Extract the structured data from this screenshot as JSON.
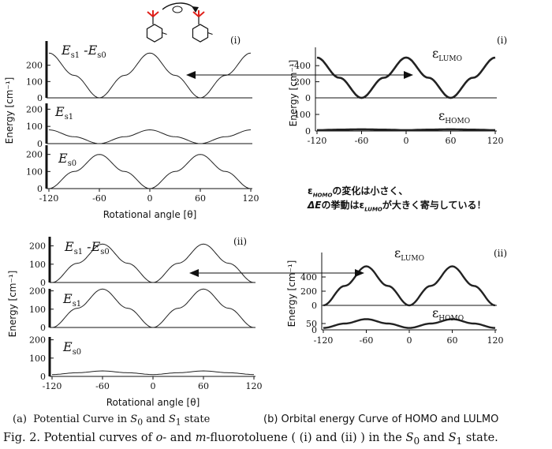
{
  "colors": {
    "line": "#222222",
    "axis": "#111111",
    "arrow": "#111111",
    "accent": "#e0201a"
  },
  "icons": [
    "rotation-arrow-icon",
    "o-fluorotoluene-structure-icon",
    "double-headed-arrow-icon"
  ],
  "panels": {
    "a_i": {
      "label": "(i)",
      "xlabel": "Rotational angle [θ]",
      "ylabel": "Energy [cm⁻¹]"
    },
    "a_ii": {
      "label": "(ii)",
      "xlabel": "Rotational angle [θ]",
      "ylabel": "Energy [cm⁻¹]"
    },
    "b_i": {
      "label": "(i)",
      "ylabel": "Energy [cm⁻¹]"
    },
    "b_ii": {
      "label": "(ii)",
      "ylabel": "Energy [cm⁻¹]"
    }
  },
  "note": {
    "line1": "εHOMOの変化は小さく、",
    "line2": "ΔEの挙動はεLUMOが大きく寄与している！"
  },
  "captions": {
    "a": "(a)  Potential Curve in S0 and S1 state",
    "b": "(b) Orbital energy Curve of HOMO and LULMO",
    "fig": "Fig. 2. Potential curves of o- and m-fluorotoluene ( (i) and (ii) ) in the S0 and S1 state."
  },
  "chart_data": [
    {
      "id": "a_i_top",
      "type": "line",
      "series": [
        {
          "name": "Es1 -Es0",
          "x": [
            -120,
            -90,
            -60,
            -30,
            0,
            30,
            60,
            90,
            120
          ],
          "y": [
            275,
            138,
            0,
            138,
            275,
            138,
            0,
            138,
            275
          ]
        }
      ],
      "xlim": [
        -120,
        120
      ],
      "ylim": [
        0,
        300
      ],
      "yticks": [
        0,
        100,
        200
      ]
    },
    {
      "id": "a_i_mid",
      "type": "line",
      "series": [
        {
          "name": "Es1",
          "x": [
            -120,
            -90,
            -60,
            -30,
            0,
            30,
            60,
            90,
            120
          ],
          "y": [
            80,
            40,
            0,
            40,
            80,
            40,
            0,
            40,
            80
          ]
        }
      ],
      "xlim": [
        -120,
        120
      ],
      "ylim": [
        0,
        220
      ],
      "yticks": [
        0,
        100,
        200
      ]
    },
    {
      "id": "a_i_bot",
      "type": "line",
      "series": [
        {
          "name": "Es0",
          "x": [
            -120,
            -90,
            -60,
            -30,
            0,
            30,
            60,
            90,
            120
          ],
          "y": [
            0,
            100,
            200,
            100,
            0,
            100,
            200,
            100,
            0
          ]
        }
      ],
      "xlim": [
        -120,
        120
      ],
      "ylim": [
        0,
        240
      ],
      "yticks": [
        0,
        100,
        200
      ],
      "xticks": [
        -120,
        -60,
        0,
        60,
        120
      ]
    },
    {
      "id": "a_ii_top",
      "type": "line",
      "series": [
        {
          "name": "Es1 -Es0",
          "x": [
            -120,
            -90,
            -60,
            -30,
            0,
            30,
            60,
            90,
            120
          ],
          "y": [
            0,
            105,
            210,
            105,
            0,
            105,
            210,
            105,
            0
          ]
        }
      ],
      "xlim": [
        -120,
        120
      ],
      "ylim": [
        0,
        250
      ],
      "yticks": [
        0,
        100,
        200
      ]
    },
    {
      "id": "a_ii_mid",
      "type": "line",
      "series": [
        {
          "name": "Es1",
          "x": [
            -120,
            -90,
            -60,
            -30,
            0,
            30,
            60,
            90,
            120
          ],
          "y": [
            0,
            105,
            210,
            105,
            0,
            105,
            210,
            105,
            0
          ]
        }
      ],
      "xlim": [
        -120,
        120
      ],
      "ylim": [
        0,
        250
      ],
      "yticks": [
        0,
        100,
        200
      ]
    },
    {
      "id": "a_ii_bot",
      "type": "line",
      "series": [
        {
          "name": "Es0",
          "x": [
            -120,
            -90,
            -60,
            -30,
            0,
            30,
            60,
            90,
            120
          ],
          "y": [
            10,
            20,
            30,
            20,
            10,
            20,
            30,
            20,
            10
          ]
        }
      ],
      "xlim": [
        -120,
        120
      ],
      "ylim": [
        0,
        250
      ],
      "yticks": [
        0,
        100,
        200
      ],
      "xticks": [
        -120,
        -60,
        0,
        60,
        120
      ]
    },
    {
      "id": "b_i",
      "type": "line",
      "series": [
        {
          "name": "εLUMO",
          "x": [
            -120,
            -90,
            -60,
            -30,
            0,
            30,
            60,
            90,
            120
          ],
          "y": [
            500,
            250,
            0,
            250,
            500,
            250,
            0,
            250,
            500
          ]
        },
        {
          "name": "εHOMO",
          "x": [
            -120,
            -90,
            -60,
            -30,
            0,
            30,
            60,
            90,
            120
          ],
          "y": [
            5,
            8,
            10,
            8,
            5,
            8,
            10,
            8,
            5
          ]
        }
      ],
      "xlim": [
        -120,
        120
      ],
      "yticks_upper": [
        0,
        200,
        400
      ],
      "yticks_lower": [
        0,
        100
      ],
      "xticks": [
        -120,
        -60,
        0,
        60,
        120
      ]
    },
    {
      "id": "b_ii",
      "type": "line",
      "series": [
        {
          "name": "εLUMO",
          "x": [
            -120,
            -90,
            -60,
            -30,
            0,
            30,
            60,
            90,
            120
          ],
          "y": [
            0,
            275,
            550,
            275,
            0,
            275,
            550,
            275,
            0
          ]
        },
        {
          "name": "εHOMO",
          "x": [
            -120,
            -90,
            -60,
            -30,
            0,
            30,
            60,
            90,
            120
          ],
          "y": [
            15,
            50,
            85,
            50,
            15,
            50,
            85,
            50,
            15
          ]
        }
      ],
      "xlim": [
        -120,
        120
      ],
      "yticks_upper": [
        0,
        200,
        400
      ],
      "yticks_lower": [
        0,
        50
      ],
      "xticks": [
        -120,
        -60,
        0,
        60,
        120
      ]
    }
  ]
}
